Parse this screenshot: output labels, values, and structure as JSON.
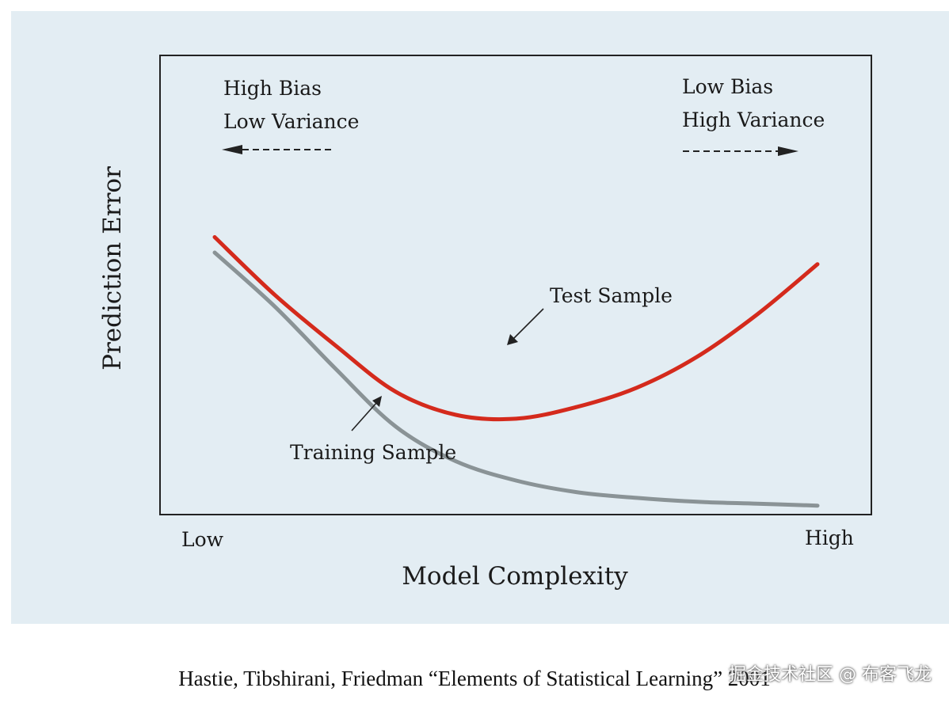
{
  "chart_data": {
    "type": "line",
    "xlabel": "Model Complexity",
    "ylabel": "Prediction Error",
    "x_tick_labels": [
      "Low",
      "High"
    ],
    "grid": false,
    "xlim": [
      0,
      1
    ],
    "ylim": [
      0,
      1
    ],
    "series": [
      {
        "name": "Test Sample",
        "color": "#d42a1c",
        "x": [
          0.0,
          0.1,
          0.2,
          0.3,
          0.4,
          0.5,
          0.6,
          0.7,
          0.8,
          0.9,
          1.0
        ],
        "y": [
          0.71,
          0.56,
          0.43,
          0.31,
          0.25,
          0.24,
          0.27,
          0.32,
          0.4,
          0.51,
          0.64
        ]
      },
      {
        "name": "Training Sample",
        "color": "#8a9396",
        "x": [
          0.0,
          0.1,
          0.2,
          0.3,
          0.4,
          0.5,
          0.6,
          0.7,
          0.8,
          0.9,
          1.0
        ],
        "y": [
          0.67,
          0.53,
          0.37,
          0.22,
          0.13,
          0.08,
          0.05,
          0.035,
          0.025,
          0.02,
          0.015
        ]
      }
    ],
    "annotations": [
      {
        "id": "left_top",
        "text": "High Bias",
        "arrow": "left"
      },
      {
        "id": "left_bottom",
        "text": "Low Variance"
      },
      {
        "id": "right_top",
        "text": "Low Bias",
        "arrow": "right"
      },
      {
        "id": "right_bottom",
        "text": "High Variance"
      },
      {
        "id": "test",
        "text": "Test Sample"
      },
      {
        "id": "train",
        "text": "Training Sample"
      }
    ]
  },
  "caption": "Hastie, Tibshirani, Friedman “Elements of Statistical Learning” 2001",
  "watermark": "掘金技术社区 @ 布客飞龙"
}
